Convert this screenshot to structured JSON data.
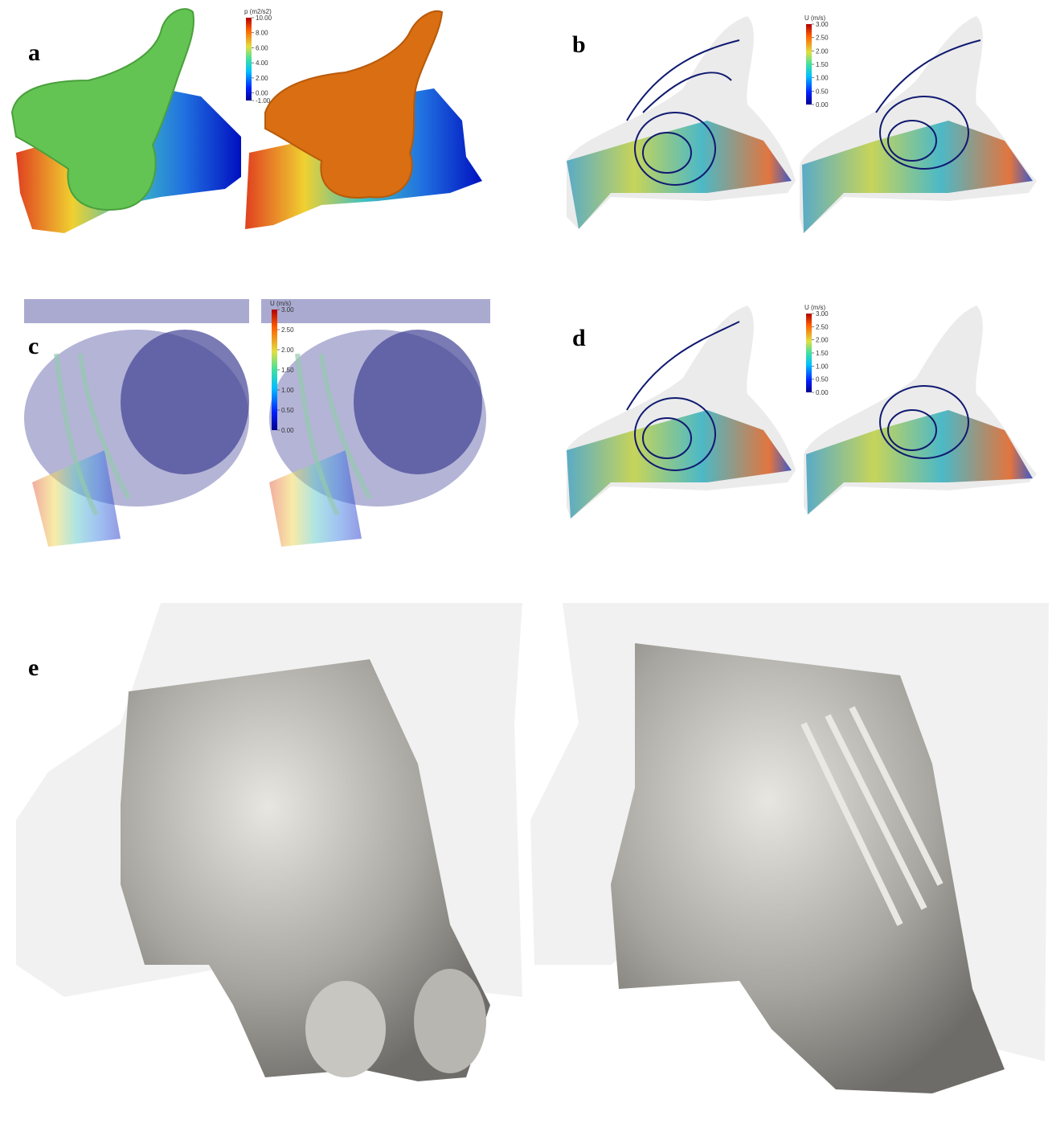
{
  "panels": [
    {
      "label": "a",
      "colorbar": {
        "title": "p (m2/s2)",
        "range": [
          -1,
          10
        ],
        "ticks": [
          {
            "value": 10,
            "label": "10.00"
          },
          {
            "value": 8,
            "label": "8.00"
          },
          {
            "value": 6,
            "label": "6.00"
          },
          {
            "value": 4,
            "label": "4.00"
          },
          {
            "value": 2,
            "label": "2.00"
          },
          {
            "value": 0,
            "label": "0.00"
          },
          {
            "value": -1,
            "label": "-1.00"
          }
        ]
      }
    },
    {
      "label": "b",
      "colorbar": {
        "title": "U (m/s)",
        "range": [
          0,
          3
        ],
        "ticks": [
          {
            "value": 3,
            "label": "3.00"
          },
          {
            "value": 2.5,
            "label": "2.50"
          },
          {
            "value": 2,
            "label": "2.00"
          },
          {
            "value": 1.5,
            "label": "1.50"
          },
          {
            "value": 1,
            "label": "1.00"
          },
          {
            "value": 0.5,
            "label": "0.50"
          },
          {
            "value": 0,
            "label": "0.00"
          }
        ]
      }
    },
    {
      "label": "c",
      "colorbar": {
        "title": "U (m/s)",
        "range": [
          0,
          3
        ],
        "ticks": [
          {
            "value": 3,
            "label": "3.00"
          },
          {
            "value": 2.5,
            "label": "2.50"
          },
          {
            "value": 2,
            "label": "2.00"
          },
          {
            "value": 1.5,
            "label": "1.50"
          },
          {
            "value": 1,
            "label": "1.00"
          },
          {
            "value": 0.5,
            "label": "0.50"
          },
          {
            "value": 0,
            "label": "0.00"
          }
        ]
      }
    },
    {
      "label": "d",
      "colorbar": {
        "title": "U (m/s)",
        "range": [
          0,
          3
        ],
        "ticks": [
          {
            "value": 3,
            "label": "3.00"
          },
          {
            "value": 2.5,
            "label": "2.50"
          },
          {
            "value": 2,
            "label": "2.00"
          },
          {
            "value": 1.5,
            "label": "1.50"
          },
          {
            "value": 1,
            "label": "1.00"
          },
          {
            "value": 0.5,
            "label": "0.50"
          },
          {
            "value": 0,
            "label": "0.00"
          }
        ]
      }
    },
    {
      "label": "e"
    }
  ]
}
